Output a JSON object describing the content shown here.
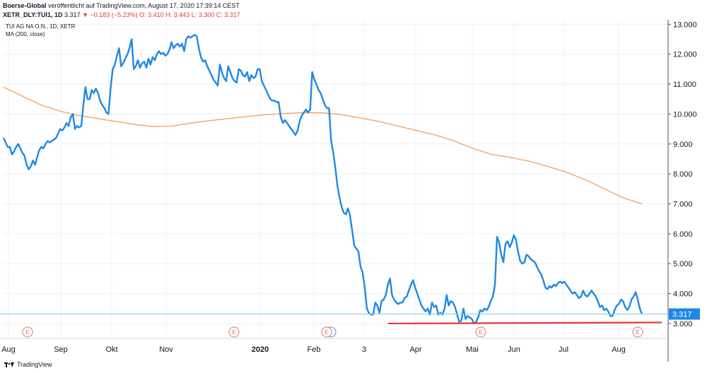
{
  "header": {
    "publisher": "Boerse-Global",
    "published_text": "veröffentlicht auf TradingView.com, August 17, 2020 17:39:14 CEST",
    "symbol_line": "XETR_DLY:TUI1, 1D",
    "last": "3.317",
    "change": "−0.183 (−5.23%)",
    "ohlc": {
      "o": "O: 3.410",
      "h": "H: 3.443",
      "l": "L: 3.300",
      "c": "C: 3.317"
    }
  },
  "legend": {
    "title": "TUI AG NA O.N., 1D, XETR",
    "indicator": "MA (200, close)"
  },
  "footer": {
    "brand": "TradingView"
  },
  "colors": {
    "price": "#1e88e5",
    "ma": "#f5a05a",
    "support": "#e53935",
    "price_line": "#7ecfe6",
    "earnings": "#e57373",
    "grid": "#eef0f3",
    "axis": "#50535e"
  },
  "chart_data": {
    "type": "line",
    "title": "TUI AG NA O.N., 1D, XETR",
    "xlabel": "",
    "ylabel": "",
    "ylim": [
      2.55,
      13.15
    ],
    "yticks": [
      "3.000",
      "4.000",
      "5.000",
      "6.000",
      "7.000",
      "8.000",
      "9.000",
      "10.000",
      "11.000",
      "12.000",
      "13.000"
    ],
    "x_tick_labels": [
      "Aug",
      "Sep",
      "Okt",
      "Nov",
      "2020",
      "Feb",
      "3",
      "Apr",
      "Mai",
      "Jun",
      "Jul",
      "Aug"
    ],
    "price_label": "3.317",
    "grid": true,
    "earnings_markers": [
      "E",
      "E",
      "E",
      "E",
      "E"
    ],
    "support_level": 3.0,
    "series": [
      {
        "name": "TUI AG NA O.N., 1D, XETR",
        "values": [
          9.2,
          9.05,
          8.9,
          8.9,
          8.65,
          8.75,
          8.9,
          9.0,
          8.85,
          8.7,
          8.6,
          8.3,
          8.15,
          8.25,
          8.45,
          8.3,
          8.55,
          8.8,
          8.9,
          8.85,
          9.0,
          9.1,
          9.05,
          9.1,
          9.15,
          9.2,
          9.35,
          9.5,
          9.45,
          9.55,
          9.7,
          9.6,
          9.9,
          10.0,
          9.5,
          9.6,
          9.55,
          9.6,
          10.3,
          10.9,
          10.5,
          10.5,
          10.8,
          10.7,
          10.85,
          10.7,
          10.45,
          10.3,
          10.2,
          10.05,
          10.0,
          10.9,
          11.5,
          11.65,
          11.95,
          12.2,
          11.6,
          11.7,
          11.85,
          12.0,
          12.2,
          12.5,
          11.5,
          11.6,
          11.8,
          11.55,
          11.7,
          11.75,
          11.55,
          11.85,
          11.65,
          11.9,
          11.8,
          12.0,
          12.1,
          12.0,
          12.05,
          11.95,
          12.0,
          12.15,
          12.4,
          12.2,
          12.3,
          12.35,
          12.25,
          12.35,
          12.1,
          12.5,
          12.6,
          12.55,
          12.6,
          12.65,
          12.6,
          12.2,
          11.9,
          11.75,
          11.8,
          11.6,
          11.45,
          11.3,
          11.15,
          11.05,
          10.95,
          11.65,
          11.4,
          11.2,
          11.1,
          11.6,
          11.4,
          11.2,
          11.1,
          11.05,
          11.5,
          11.45,
          11.3,
          11.25,
          11.4,
          11.1,
          11.3,
          11.2,
          11.25,
          11.5,
          11.5,
          11.1,
          10.95,
          10.8,
          10.65,
          10.5,
          10.45,
          10.45,
          10.4,
          10.4,
          9.9,
          9.7,
          9.8,
          9.7,
          9.6,
          9.5,
          9.4,
          9.3,
          9.45,
          9.75,
          9.95,
          10.05,
          10.15,
          10.05,
          10.15,
          11.4,
          11.15,
          11.0,
          10.8,
          10.7,
          10.5,
          10.3,
          10.2,
          10.2,
          9.1,
          8.7,
          8.2,
          7.6,
          7.2,
          6.9,
          6.7,
          6.65,
          6.85,
          6.6,
          6.1,
          5.6,
          5.5,
          5.4,
          4.9,
          4.7,
          4.2,
          3.5,
          3.35,
          3.3,
          3.3,
          3.7,
          3.6,
          3.35,
          3.75,
          3.8,
          3.95,
          4.3,
          4.5,
          3.95,
          3.8,
          3.7,
          3.65,
          3.7,
          3.7,
          3.85,
          3.9,
          4.1,
          4.3,
          4.45,
          4.2,
          4.0,
          3.8,
          3.6,
          3.5,
          3.4,
          3.5,
          3.3,
          3.7,
          3.55,
          3.6,
          3.3,
          3.35,
          3.3,
          3.5,
          3.95,
          3.6,
          3.75,
          3.7,
          3.55,
          3.3,
          3.05,
          3.1,
          3.5,
          3.15,
          3.25,
          3.2,
          3.15,
          3.0,
          3.05,
          3.2,
          3.45,
          3.4,
          3.5,
          3.45,
          3.55,
          3.75,
          3.9,
          4.3,
          5.9,
          5.7,
          5.3,
          5.05,
          5.65,
          5.75,
          5.55,
          5.7,
          5.95,
          5.8,
          5.4,
          5.1,
          5.0,
          5.05,
          5.3,
          5.25,
          5.15,
          5.1,
          5.05,
          4.9,
          4.75,
          4.65,
          4.45,
          4.2,
          4.15,
          4.25,
          4.2,
          4.3,
          4.25,
          4.35,
          4.4,
          4.35,
          4.4,
          4.3,
          4.2,
          4.1,
          4.0,
          4.05,
          3.95,
          3.85,
          3.9,
          4.1,
          3.95,
          3.9,
          4.0,
          4.1,
          4.0,
          3.9,
          3.75,
          3.55,
          3.6,
          3.45,
          3.5,
          3.4,
          3.25,
          3.25,
          3.45,
          3.6,
          3.65,
          3.8,
          3.75,
          3.55,
          3.45,
          3.55,
          3.8,
          3.9,
          4.05,
          3.8,
          3.5,
          3.317
        ]
      },
      {
        "name": "MA (200, close)",
        "values": [
          10.9,
          10.6,
          10.3,
          10.1,
          9.95,
          9.85,
          9.75,
          9.65,
          9.58,
          9.6,
          9.7,
          9.78,
          9.85,
          9.92,
          9.98,
          10.02,
          10.05,
          10.04,
          9.98,
          9.87,
          9.75,
          9.6,
          9.45,
          9.3,
          9.1,
          8.85,
          8.65,
          8.55,
          8.42,
          8.25,
          8.05,
          7.8,
          7.5,
          7.2,
          7.0
        ]
      }
    ]
  }
}
